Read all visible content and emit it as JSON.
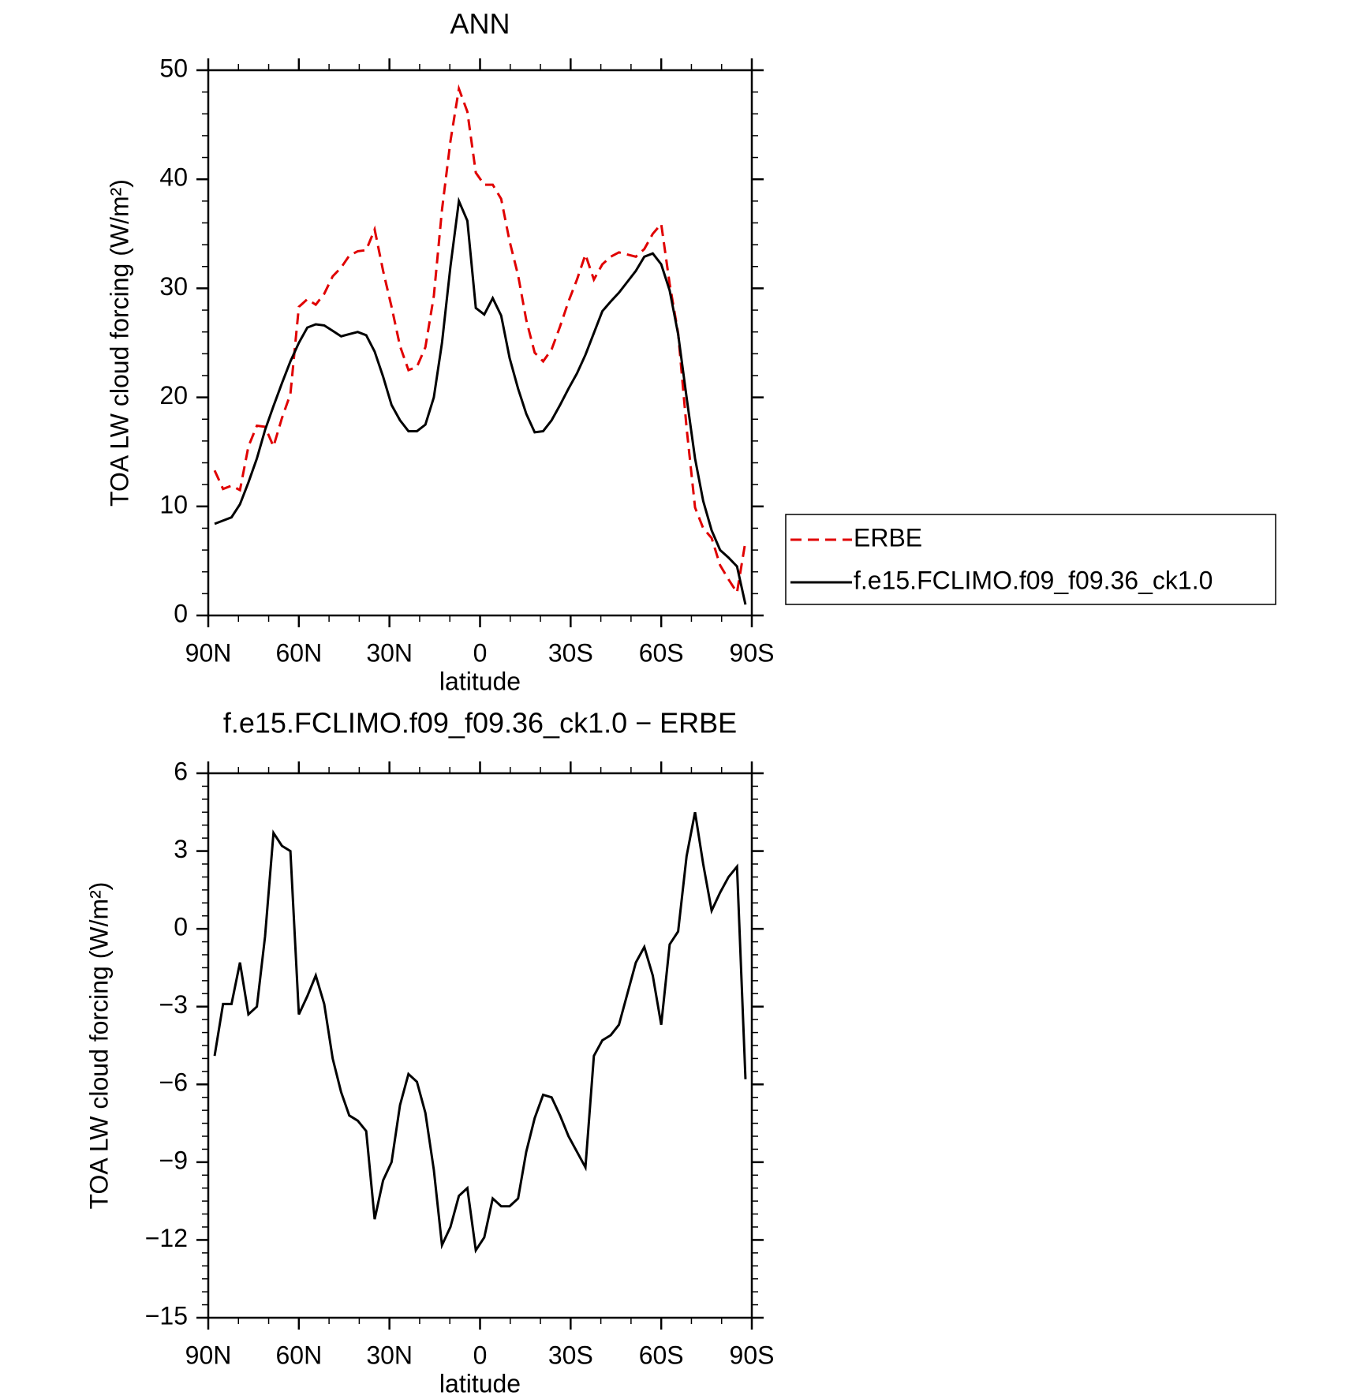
{
  "chart_data": [
    {
      "type": "line",
      "title": "ANN",
      "xlabel": "latitude",
      "ylabel": "TOA LW cloud forcing (W/m²)",
      "x": [
        87.9,
        85.1,
        82.3,
        79.5,
        76.7,
        73.9,
        71.2,
        68.4,
        65.6,
        62.8,
        60.0,
        57.2,
        54.4,
        51.6,
        48.8,
        46.0,
        43.3,
        40.5,
        37.7,
        34.9,
        32.1,
        29.3,
        26.5,
        23.7,
        20.9,
        18.1,
        15.3,
        12.6,
        9.8,
        7.0,
        4.2,
        1.4,
        -1.4,
        -4.2,
        -7.0,
        -9.8,
        -12.6,
        -15.3,
        -18.1,
        -20.9,
        -23.7,
        -26.5,
        -29.3,
        -32.1,
        -34.9,
        -37.7,
        -40.5,
        -43.3,
        -46.0,
        -48.8,
        -51.6,
        -54.4,
        -57.2,
        -60.0,
        -62.8,
        -65.6,
        -68.4,
        -71.2,
        -73.9,
        -76.7,
        -79.5,
        -82.3,
        -85.1,
        -87.9
      ],
      "series": [
        {
          "name": "ERBE",
          "color": "#e00000",
          "style": "dashed",
          "values": [
            13.3,
            11.6,
            11.9,
            11.5,
            15.5,
            17.4,
            17.3,
            15.5,
            18.1,
            20.3,
            28.3,
            29.0,
            28.5,
            29.5,
            31.1,
            31.9,
            33.0,
            33.4,
            33.5,
            35.4,
            31.6,
            28.3,
            24.7,
            22.5,
            22.8,
            24.6,
            29.3,
            37.2,
            43.5,
            48.3,
            46.2,
            40.6,
            39.5,
            39.5,
            38.2,
            34.3,
            31.2,
            27.1,
            24.1,
            23.3,
            24.4,
            26.5,
            28.8,
            30.8,
            33.1,
            30.8,
            32.2,
            32.9,
            33.3,
            33.1,
            32.9,
            33.6,
            35.0,
            35.9,
            30.4,
            25.9,
            17.2,
            9.9,
            8.0,
            7.1,
            4.6,
            3.3,
            2.1,
            6.8
          ]
        },
        {
          "name": "f.e15.FCLIMO.f09_f09.36_ck1.0",
          "color": "#000000",
          "style": "solid",
          "values": [
            8.4,
            8.7,
            9.0,
            10.2,
            12.2,
            14.4,
            17.0,
            19.2,
            21.3,
            23.3,
            25.0,
            26.4,
            26.7,
            26.6,
            26.1,
            25.6,
            25.8,
            26.0,
            25.7,
            24.2,
            21.9,
            19.3,
            17.9,
            16.9,
            16.9,
            17.5,
            20.0,
            25.0,
            32.0,
            38.0,
            36.2,
            28.2,
            27.6,
            29.1,
            27.5,
            23.6,
            20.8,
            18.5,
            16.8,
            16.9,
            17.9,
            19.3,
            20.8,
            22.2,
            23.9,
            25.9,
            27.9,
            28.8,
            29.6,
            30.6,
            31.6,
            32.9,
            33.2,
            32.2,
            29.8,
            25.8,
            20.0,
            14.4,
            10.5,
            7.8,
            6.0,
            5.3,
            4.5,
            1.0
          ]
        }
      ],
      "xlim": [
        90,
        -90
      ],
      "xticks": [
        {
          "value": 90,
          "label": "90N"
        },
        {
          "value": 60,
          "label": "60N"
        },
        {
          "value": 30,
          "label": "30N"
        },
        0,
        {
          "value": -30,
          "label": "30S"
        },
        {
          "value": -60,
          "label": "60S"
        },
        {
          "value": -90,
          "label": "90S"
        }
      ],
      "ylim": [
        0,
        50
      ],
      "yticks": [
        0,
        10,
        20,
        30,
        40,
        50
      ],
      "legend": "outside right"
    },
    {
      "type": "line",
      "title": "f.e15.FCLIMO.f09_f09.36_ck1.0 − ERBE",
      "xlabel": "latitude",
      "ylabel": "TOA LW cloud forcing (W/m²)",
      "x": [
        87.9,
        85.1,
        82.3,
        79.5,
        76.7,
        73.9,
        71.2,
        68.4,
        65.6,
        62.8,
        60.0,
        57.2,
        54.4,
        51.6,
        48.8,
        46.0,
        43.3,
        40.5,
        37.7,
        34.9,
        32.1,
        29.3,
        26.5,
        23.7,
        20.9,
        18.1,
        15.3,
        12.6,
        9.8,
        7.0,
        4.2,
        1.4,
        -1.4,
        -4.2,
        -7.0,
        -9.8,
        -12.6,
        -15.3,
        -18.1,
        -20.9,
        -23.7,
        -26.5,
        -29.3,
        -32.1,
        -34.9,
        -37.7,
        -40.5,
        -43.3,
        -46.0,
        -48.8,
        -51.6,
        -54.4,
        -57.2,
        -60.0,
        -62.8,
        -65.6,
        -68.4,
        -71.2,
        -73.9,
        -76.7,
        -79.5,
        -82.3,
        -85.1,
        -87.9
      ],
      "values": [
        -4.9,
        -2.9,
        -2.9,
        -1.3,
        -3.3,
        -3.0,
        -0.3,
        3.7,
        3.2,
        3.0,
        -3.3,
        -2.6,
        -1.8,
        -2.9,
        -5.0,
        -6.3,
        -7.2,
        -7.4,
        -7.8,
        -11.2,
        -9.7,
        -9.0,
        -6.8,
        -5.6,
        -5.9,
        -7.1,
        -9.3,
        -12.2,
        -11.5,
        -10.3,
        -10.0,
        -12.4,
        -11.9,
        -10.4,
        -10.7,
        -10.7,
        -10.4,
        -8.6,
        -7.3,
        -6.4,
        -6.5,
        -7.2,
        -8.0,
        -8.6,
        -9.2,
        -4.9,
        -4.3,
        -4.1,
        -3.7,
        -2.5,
        -1.3,
        -0.7,
        -1.8,
        -3.7,
        -0.6,
        -0.1,
        2.8,
        4.5,
        2.5,
        0.7,
        1.4,
        2.0,
        2.4,
        -5.8
      ],
      "color": "#000000",
      "xlim": [
        90,
        -90
      ],
      "xticks": [
        {
          "value": 90,
          "label": "90N"
        },
        {
          "value": 60,
          "label": "60N"
        },
        {
          "value": 30,
          "label": "30N"
        },
        0,
        {
          "value": -30,
          "label": "30S"
        },
        {
          "value": -60,
          "label": "60S"
        },
        {
          "value": -90,
          "label": "90S"
        }
      ],
      "ylim": [
        -15,
        6
      ],
      "yticks": [
        {
          "value": -15,
          "label": "−15"
        },
        {
          "value": -12,
          "label": "−12"
        },
        {
          "value": -9,
          "label": "−9"
        },
        {
          "value": -6,
          "label": "−6"
        },
        {
          "value": -3,
          "label": "−3"
        },
        0,
        3,
        6
      ]
    }
  ]
}
